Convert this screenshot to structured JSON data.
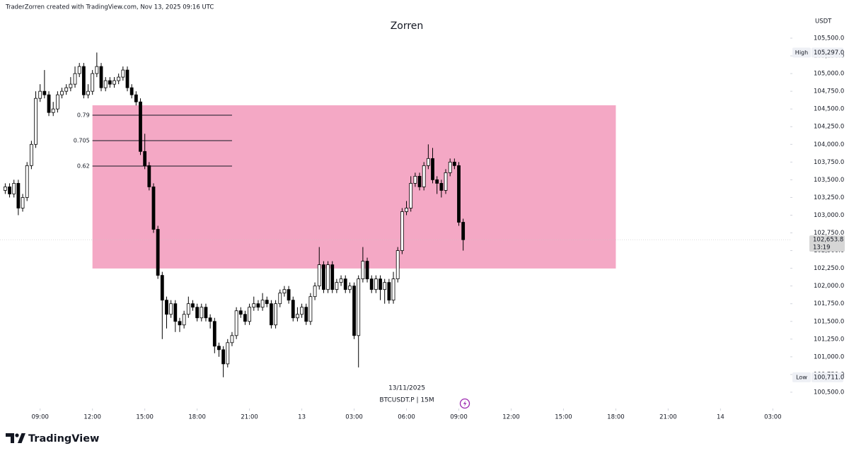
{
  "chart_data": {
    "type": "candlestick",
    "header": "TraderZorren created with TradingView.com, Nov 13, 2025 09:16 UTC",
    "title": "Zorren",
    "date_label": "13/11/2025",
    "symbol_label": "BTCUSDT.P | 15M",
    "currency": "USDT",
    "brand": "TradingView",
    "up_color": "#ffffff",
    "down_color": "#000000",
    "x": [
      7,
      7.25,
      7.5,
      7.75,
      8,
      8.25,
      8.5,
      8.75,
      9,
      9.25,
      9.5,
      9.75,
      10,
      10.25,
      10.5,
      10.75,
      11,
      11.25,
      11.5,
      11.75,
      12,
      12.25,
      12.5,
      12.75,
      13,
      13.25,
      13.5,
      13.75,
      14,
      14.25,
      14.5,
      14.75,
      15,
      15.25,
      15.5,
      15.75,
      16,
      16.25,
      16.5,
      16.75,
      17,
      17.25,
      17.5,
      17.75,
      18,
      18.25,
      18.5,
      18.75,
      19,
      19.25,
      19.5,
      19.75,
      20,
      20.25,
      20.5,
      20.75,
      21,
      21.25,
      21.5,
      21.75,
      22,
      22.25,
      22.5,
      22.75,
      23,
      23.25,
      23.5,
      23.75,
      24,
      24.25,
      24.5,
      24.75,
      25,
      25.25,
      25.5,
      25.75,
      26,
      26.25,
      26.5,
      26.75,
      27,
      27.25,
      27.5,
      27.75,
      28,
      28.25,
      28.5,
      28.75,
      29,
      29.25,
      29.5,
      29.75,
      30,
      30.25,
      30.5,
      30.75,
      31,
      31.25,
      31.5,
      31.75,
      32,
      32.25,
      32.5,
      32.75,
      33,
      33.25
    ],
    "open": [
      103350,
      103400,
      103300,
      103450,
      103100,
      103250,
      103700,
      104000,
      104650,
      104750,
      104700,
      104450,
      104500,
      104700,
      104750,
      104800,
      104850,
      105000,
      105100,
      104700,
      104750,
      105000,
      105100,
      104800,
      104900,
      104850,
      104900,
      104950,
      105050,
      104800,
      104700,
      104600,
      103900,
      103700,
      103400,
      102800,
      102150,
      101800,
      101600,
      101750,
      101500,
      101450,
      101600,
      101750,
      101700,
      101550,
      101700,
      101550,
      101500,
      101150,
      101100,
      100900,
      101200,
      101300,
      101650,
      101600,
      101500,
      101700,
      101750,
      101700,
      101800,
      101750,
      101450,
      101750,
      101900,
      101950,
      101800,
      101550,
      101600,
      101700,
      101500,
      101850,
      102000,
      102300,
      101950,
      102300,
      101950,
      102050,
      102100,
      101950,
      102000,
      101300,
      102100,
      102350,
      102100,
      101950,
      102100,
      101950,
      102050,
      101800,
      102100,
      102500,
      103050,
      103100,
      103450,
      103550,
      103400,
      103700,
      103800,
      103500,
      103450,
      103350,
      103600,
      103750,
      103700,
      102900
    ],
    "high": [
      103450,
      103450,
      103500,
      103500,
      103300,
      103750,
      104050,
      104750,
      104850,
      105050,
      104750,
      104600,
      104750,
      104800,
      104850,
      104950,
      105100,
      105150,
      105150,
      104850,
      105050,
      105297,
      105150,
      104950,
      104950,
      104950,
      105000,
      105100,
      105100,
      104850,
      104750,
      104650,
      104150,
      103750,
      103450,
      102850,
      102200,
      101850,
      101800,
      101800,
      101550,
      101650,
      101850,
      101800,
      101750,
      101750,
      101750,
      101600,
      101550,
      101200,
      101150,
      101250,
      101350,
      101700,
      101700,
      101650,
      101750,
      101850,
      101800,
      101900,
      101850,
      101800,
      101800,
      101950,
      102000,
      102000,
      101850,
      101700,
      101750,
      101750,
      101900,
      102050,
      102550,
      102350,
      102350,
      102350,
      102100,
      102150,
      102150,
      102050,
      102050,
      102150,
      102550,
      102400,
      102150,
      102150,
      102150,
      102100,
      102100,
      102200,
      102550,
      103100,
      103200,
      103550,
      103600,
      103600,
      103750,
      104000,
      103950,
      103550,
      103500,
      103650,
      103800,
      103800,
      103750,
      102950
    ],
    "low": [
      103300,
      103250,
      103250,
      103000,
      103050,
      103200,
      103650,
      103950,
      104600,
      104650,
      104400,
      104400,
      104450,
      104650,
      104700,
      104750,
      104800,
      104950,
      104650,
      104650,
      104700,
      104950,
      104750,
      104750,
      104800,
      104800,
      104850,
      104900,
      104750,
      104650,
      104550,
      103850,
      103650,
      103350,
      102750,
      102100,
      101250,
      101400,
      101550,
      101350,
      101350,
      101400,
      101550,
      101650,
      101500,
      101500,
      101500,
      101400,
      101050,
      101000,
      100711,
      100850,
      101150,
      101250,
      101550,
      101450,
      101450,
      101650,
      101650,
      101650,
      101700,
      101400,
      101400,
      101700,
      101850,
      101750,
      101500,
      101500,
      101550,
      101450,
      101450,
      101800,
      101950,
      101900,
      101900,
      101900,
      101900,
      102000,
      101900,
      101900,
      101250,
      100850,
      102050,
      102050,
      101900,
      101900,
      101800,
      101750,
      101750,
      101750,
      102050,
      102450,
      103000,
      103050,
      103400,
      103350,
      103350,
      103650,
      103450,
      103300,
      103250,
      103300,
      103550,
      103650,
      102850,
      102500
    ],
    "close": [
      103400,
      103300,
      103450,
      103100,
      103250,
      103700,
      104000,
      104650,
      104750,
      104700,
      104450,
      104500,
      104700,
      104750,
      104800,
      104850,
      105000,
      105100,
      104700,
      104750,
      105000,
      105100,
      104800,
      104900,
      104850,
      104900,
      104950,
      105050,
      104800,
      104700,
      104600,
      103900,
      103700,
      103400,
      102800,
      102150,
      101800,
      101600,
      101750,
      101500,
      101450,
      101600,
      101750,
      101700,
      101550,
      101700,
      101550,
      101500,
      101150,
      101100,
      100900,
      101200,
      101300,
      101650,
      101600,
      101500,
      101700,
      101750,
      101700,
      101800,
      101750,
      101450,
      101750,
      101900,
      101950,
      101800,
      101550,
      101600,
      101700,
      101500,
      101850,
      102000,
      102300,
      101950,
      102300,
      101950,
      102050,
      102100,
      101950,
      102000,
      101300,
      102100,
      102350,
      102100,
      101950,
      102100,
      101950,
      102050,
      101800,
      102100,
      102500,
      103050,
      103100,
      103450,
      103550,
      103400,
      103700,
      103800,
      103500,
      103450,
      103350,
      103600,
      103750,
      103700,
      102900,
      102653.8
    ],
    "xlim": [
      6.7,
      52
    ],
    "xticks": [
      {
        "value": 9,
        "label": "09:00"
      },
      {
        "value": 12,
        "label": "12:00"
      },
      {
        "value": 15,
        "label": "15:00"
      },
      {
        "value": 18,
        "label": "18:00"
      },
      {
        "value": 21,
        "label": "21:00"
      },
      {
        "value": 24,
        "label": "13"
      },
      {
        "value": 27,
        "label": "03:00"
      },
      {
        "value": 30,
        "label": "06:00"
      },
      {
        "value": 33,
        "label": "09:00"
      },
      {
        "value": 36,
        "label": "12:00"
      },
      {
        "value": 39,
        "label": "15:00"
      },
      {
        "value": 42,
        "label": "18:00"
      },
      {
        "value": 45,
        "label": "21:00"
      },
      {
        "value": 48,
        "label": "14"
      },
      {
        "value": 51,
        "label": "03:00"
      }
    ],
    "ylim": [
      100270,
      106039
    ],
    "yticks": [
      {
        "value": 100500,
        "label": "100,500.0"
      },
      {
        "value": 100750,
        "label": "100,750.0"
      },
      {
        "value": 101000,
        "label": "101,000.0"
      },
      {
        "value": 101250,
        "label": "101,250.0"
      },
      {
        "value": 101500,
        "label": "101,500.0"
      },
      {
        "value": 101750,
        "label": "101,750.0"
      },
      {
        "value": 102000,
        "label": "102,000.0"
      },
      {
        "value": 102250,
        "label": "102,250.0"
      },
      {
        "value": 102500,
        "label": "102,500.0"
      },
      {
        "value": 102750,
        "label": "102,750.0"
      },
      {
        "value": 103000,
        "label": "103,000.0"
      },
      {
        "value": 103250,
        "label": "103,250.0"
      },
      {
        "value": 103500,
        "label": "103,500.0"
      },
      {
        "value": 103750,
        "label": "103,750.0"
      },
      {
        "value": 104000,
        "label": "104,000.0"
      },
      {
        "value": 104250,
        "label": "104,250.0"
      },
      {
        "value": 104500,
        "label": "104,500.0"
      },
      {
        "value": 104750,
        "label": "104,750.0"
      },
      {
        "value": 105000,
        "label": "105,000.0"
      },
      {
        "value": 105250,
        "label": "105,250.0"
      },
      {
        "value": 105500,
        "label": "105,500.0"
      }
    ],
    "grid": false,
    "zone": {
      "x": [
        12,
        42
      ],
      "low": 102247,
      "high": 104552,
      "color": "#f4a8c5"
    },
    "fib_x": [
      12,
      20
    ],
    "fib_levels": [
      {
        "ratio": 0.79,
        "price": 104412
      },
      {
        "ratio": 0.705,
        "price": 104053
      },
      {
        "ratio": 0.62,
        "price": 103694
      }
    ],
    "extremes": [
      {
        "name": "High",
        "value": 105297,
        "value_label": "105,297.0"
      },
      {
        "name": "Low",
        "value": 100711,
        "value_label": "100,711.0"
      }
    ],
    "last_price": {
      "value": 102653.8,
      "value_label": "102,653.8",
      "countdown": "13:19"
    }
  }
}
